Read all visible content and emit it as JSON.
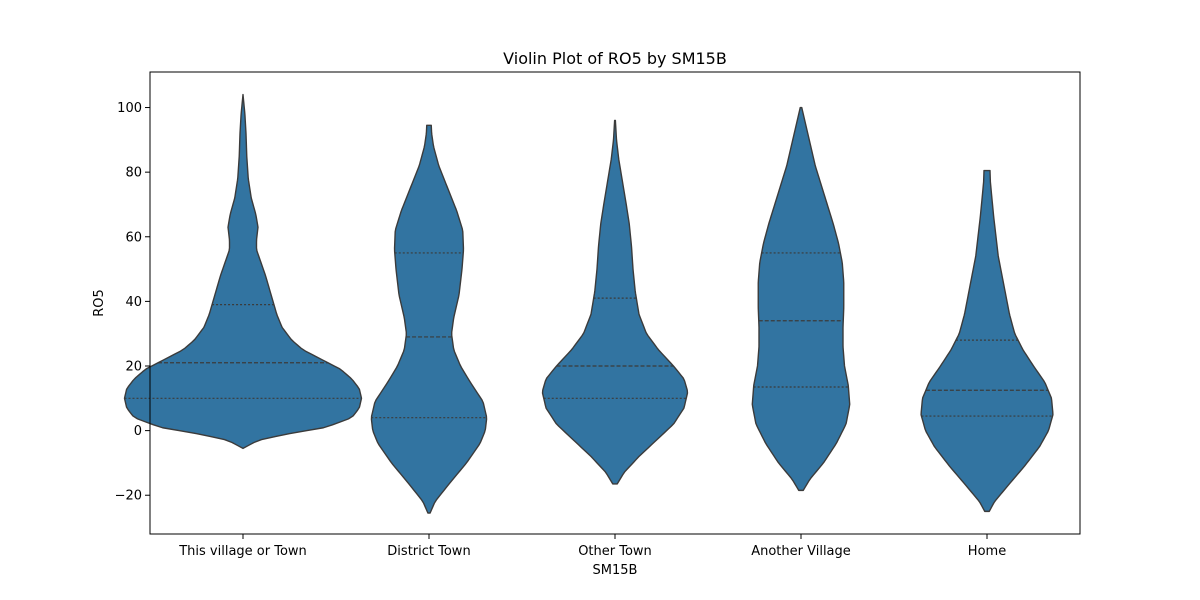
{
  "chart_data": {
    "type": "violin",
    "title": "Violin Plot of RO5 by SM15B",
    "xlabel": "SM15B",
    "ylabel": "RO5",
    "ylim": [
      -32,
      111
    ],
    "yticks": [
      -20,
      0,
      20,
      40,
      60,
      80,
      100
    ],
    "categories": [
      "This village or Town",
      "District Town",
      "Other Town",
      "Another Village",
      "Home"
    ],
    "fill_color": "#3274a1",
    "edge_color": "#3b3b3b",
    "violins": [
      {
        "category": "This village or Town",
        "min": -5.5,
        "max": 104,
        "quartiles": [
          10,
          21,
          39
        ],
        "profile": [
          [
            -5.5,
            0
          ],
          [
            -3,
            0.2
          ],
          [
            -1,
            0.6
          ],
          [
            1,
            1.1
          ],
          [
            4,
            1.45
          ],
          [
            7,
            1.55
          ],
          [
            10,
            1.58
          ],
          [
            13,
            1.55
          ],
          [
            16,
            1.45
          ],
          [
            19,
            1.3
          ],
          [
            22,
            1.05
          ],
          [
            25,
            0.8
          ],
          [
            28,
            0.65
          ],
          [
            32,
            0.52
          ],
          [
            36,
            0.45
          ],
          [
            40,
            0.4
          ],
          [
            44,
            0.35
          ],
          [
            48,
            0.3
          ],
          [
            52,
            0.24
          ],
          [
            56,
            0.18
          ],
          [
            59,
            0.18
          ],
          [
            63,
            0.2
          ],
          [
            67,
            0.17
          ],
          [
            72,
            0.11
          ],
          [
            78,
            0.07
          ],
          [
            85,
            0.05
          ],
          [
            92,
            0.04
          ],
          [
            98,
            0.025
          ],
          [
            104,
            0
          ]
        ]
      },
      {
        "category": "District Town",
        "min": -25.5,
        "max": 94.5,
        "quartiles": [
          4,
          29,
          55
        ],
        "profile": [
          [
            -25.5,
            0.015
          ],
          [
            -22,
            0.08
          ],
          [
            -17,
            0.25
          ],
          [
            -10,
            0.5
          ],
          [
            -4,
            0.68
          ],
          [
            0,
            0.75
          ],
          [
            4,
            0.77
          ],
          [
            9,
            0.72
          ],
          [
            15,
            0.55
          ],
          [
            20,
            0.42
          ],
          [
            25,
            0.33
          ],
          [
            30,
            0.3
          ],
          [
            35,
            0.33
          ],
          [
            42,
            0.4
          ],
          [
            50,
            0.44
          ],
          [
            56,
            0.46
          ],
          [
            62,
            0.45
          ],
          [
            68,
            0.37
          ],
          [
            75,
            0.25
          ],
          [
            82,
            0.13
          ],
          [
            88,
            0.06
          ],
          [
            92,
            0.035
          ],
          [
            94.5,
            0.03
          ]
        ]
      },
      {
        "category": "Other Town",
        "min": -16.5,
        "max": 96,
        "quartiles": [
          10,
          20,
          41
        ],
        "profile": [
          [
            -16.5,
            0.03
          ],
          [
            -13,
            0.12
          ],
          [
            -8,
            0.32
          ],
          [
            -3,
            0.55
          ],
          [
            2,
            0.78
          ],
          [
            7,
            0.92
          ],
          [
            12,
            0.97
          ],
          [
            16,
            0.92
          ],
          [
            20,
            0.78
          ],
          [
            25,
            0.58
          ],
          [
            30,
            0.42
          ],
          [
            36,
            0.32
          ],
          [
            43,
            0.27
          ],
          [
            50,
            0.24
          ],
          [
            57,
            0.22
          ],
          [
            64,
            0.19
          ],
          [
            70,
            0.15
          ],
          [
            77,
            0.1
          ],
          [
            84,
            0.05
          ],
          [
            90,
            0.02
          ],
          [
            96,
            0.005
          ]
        ]
      },
      {
        "category": "Another Village",
        "min": -18.5,
        "max": 100,
        "quartiles": [
          13.5,
          34,
          55
        ],
        "profile": [
          [
            -18.5,
            0.03
          ],
          [
            -15,
            0.12
          ],
          [
            -10,
            0.3
          ],
          [
            -4,
            0.47
          ],
          [
            2,
            0.6
          ],
          [
            8,
            0.65
          ],
          [
            14,
            0.63
          ],
          [
            20,
            0.58
          ],
          [
            26,
            0.56
          ],
          [
            32,
            0.56
          ],
          [
            38,
            0.57
          ],
          [
            46,
            0.57
          ],
          [
            52,
            0.55
          ],
          [
            58,
            0.5
          ],
          [
            64,
            0.43
          ],
          [
            70,
            0.35
          ],
          [
            76,
            0.27
          ],
          [
            82,
            0.19
          ],
          [
            88,
            0.13
          ],
          [
            93,
            0.08
          ],
          [
            97,
            0.04
          ],
          [
            100,
            0.01
          ]
        ]
      },
      {
        "category": "Home",
        "min": -25,
        "max": 80.5,
        "quartiles": [
          4.5,
          12.5,
          28
        ],
        "profile": [
          [
            -25,
            0.03
          ],
          [
            -22,
            0.1
          ],
          [
            -17,
            0.28
          ],
          [
            -11,
            0.5
          ],
          [
            -5,
            0.7
          ],
          [
            0,
            0.82
          ],
          [
            5,
            0.88
          ],
          [
            10,
            0.86
          ],
          [
            15,
            0.77
          ],
          [
            20,
            0.62
          ],
          [
            25,
            0.48
          ],
          [
            30,
            0.37
          ],
          [
            36,
            0.3
          ],
          [
            42,
            0.25
          ],
          [
            48,
            0.2
          ],
          [
            54,
            0.15
          ],
          [
            60,
            0.12
          ],
          [
            66,
            0.09
          ],
          [
            72,
            0.065
          ],
          [
            77,
            0.045
          ],
          [
            80.5,
            0.04
          ]
        ]
      }
    ]
  }
}
